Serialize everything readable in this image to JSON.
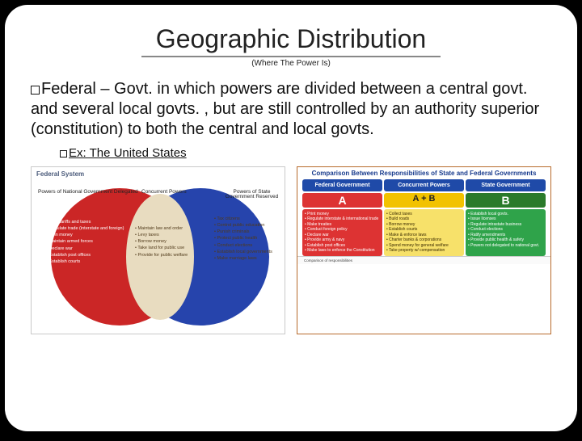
{
  "title": "Geographic Distribution",
  "subtitle": "(Where The Power Is)",
  "main_bullet": "Federal – Govt. in which powers are divided between a central govt. and several local govts. , but are still controlled by an authority superior (constitution) to both the central and local govts.",
  "example_label": "Ex: The United States",
  "venn": {
    "box_title": "Federal System",
    "left_circle_color": "#c81a1a",
    "right_circle_color": "#1a3aa8",
    "overlap_color": "#e8dcc0",
    "label_left": "Powers of National Government\nDelegated",
    "label_mid": "Concurrent Powers",
    "label_right": "Powers of State Government\nReserved",
    "left_items": [
      "Levy tariffs and taxes",
      "Regulate trade (interstate and foreign)",
      "Coin money",
      "Maintain armed forces",
      "Declare war",
      "Establish post offices",
      "Establish courts"
    ],
    "mid_items": [
      "Maintain law and order",
      "Levy taxes",
      "Borrow money",
      "Take land for public use",
      "Provide for public welfare"
    ],
    "right_items": [
      "Tax citizens",
      "Control public education",
      "Punish criminals",
      "Protect public health",
      "Conduct elections",
      "Establish local governments",
      "Make marriage laws"
    ]
  },
  "table": {
    "title": "Comparison Between Responsibilities of State and Federal Governments",
    "border_color": "#b86b2c",
    "headers": [
      "Federal Government",
      "Concurrent Powers",
      "State Government"
    ],
    "letters": [
      "A",
      "A + B",
      "B"
    ],
    "colA_color": "#d33",
    "colAB_color": "#f2c200",
    "colB_color": "#2a7a2a",
    "colA_items": [
      "Print money",
      "Regulate interstate & international trade",
      "Make treaties",
      "Conduct foreign policy",
      "Declare war",
      "Provide army & navy",
      "Establish post offices",
      "Make laws to enforce the Constitution"
    ],
    "colAB_items": [
      "Collect taxes",
      "Build roads",
      "Borrow money",
      "Establish courts",
      "Make & enforce laws",
      "Charter banks & corporations",
      "Spend money for general welfare",
      "Take property w/ compensation"
    ],
    "colB_items": [
      "Establish local govts.",
      "Issue licenses",
      "Regulate intrastate business",
      "Conduct elections",
      "Ratify amendments",
      "Provide public health & safety",
      "Powers not delegated to national govt."
    ],
    "footnote": "Comparison of responsibilities"
  }
}
